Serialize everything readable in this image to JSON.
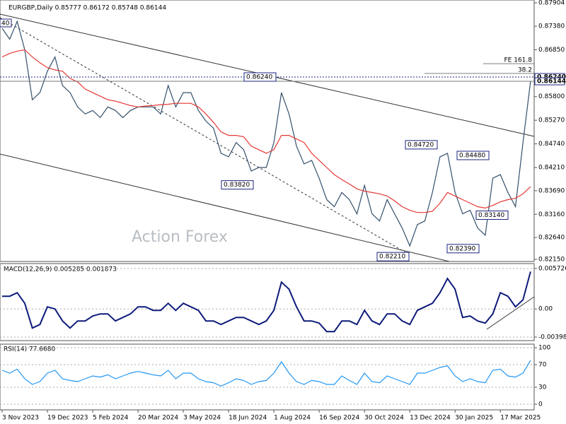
{
  "chart_data": [
    {
      "type": "line",
      "title": "EURGBP,Daily  0.85777 0.86172 0.85748 0.86144",
      "watermark": "Action Forex",
      "corner_label": "40",
      "categories": [
        "3 Nov 2023",
        null,
        null,
        null,
        null,
        null,
        "19 Dec 2023",
        null,
        null,
        null,
        null,
        null,
        "5 Feb 2024",
        null,
        null,
        null,
        null,
        null,
        "20 Mar 2024",
        null,
        null,
        null,
        null,
        null,
        "3 May 2024",
        null,
        null,
        null,
        null,
        null,
        "18 Jun 2024",
        null,
        null,
        null,
        null,
        null,
        "1 Aug 2024",
        null,
        null,
        null,
        null,
        null,
        "16 Sep 2024",
        null,
        null,
        null,
        null,
        null,
        "30 Oct 2024",
        null,
        null,
        null,
        null,
        null,
        "13 Dec 2024",
        null,
        null,
        null,
        null,
        null,
        "30 Jan 2025",
        null,
        null,
        null,
        null,
        null,
        "17 Mar 2025",
        null,
        null,
        null,
        null
      ],
      "series": [
        {
          "color": "#34506b",
          "values": [
            0.8733,
            0.8709,
            0.8749,
            0.8685,
            0.8573,
            0.8589,
            0.8637,
            0.8669,
            0.8605,
            0.8589,
            0.8557,
            0.8541,
            0.8549,
            0.8533,
            0.8557,
            0.8549,
            0.8533,
            0.8549,
            0.8557,
            0.8557,
            0.8557,
            0.8541,
            0.8605,
            0.8557,
            0.8589,
            0.8589,
            0.8549,
            0.8525,
            0.8509,
            0.8453,
            0.8445,
            0.8477,
            0.8461,
            0.8413,
            0.8421,
            0.8421,
            0.8477,
            0.8589,
            0.8541,
            0.8469,
            0.8429,
            0.8437,
            0.8397,
            0.8349,
            0.8333,
            0.8365,
            0.8349,
            0.8317,
            0.8381,
            0.8317,
            0.8301,
            0.8349,
            0.8317,
            0.8285,
            0.8245,
            0.8293,
            0.8301,
            0.8365,
            0.8445,
            0.8453,
            0.8365,
            0.8317,
            0.8325,
            0.8285,
            0.8269,
            0.8397,
            0.8405,
            0.8365,
            0.8333,
            0.8477,
            0.86144
          ]
        },
        {
          "color": "#e53935",
          "values": [
            0.8669,
            0.8677,
            0.8682,
            0.8685,
            0.8669,
            0.8656,
            0.8645,
            0.864,
            0.8637,
            0.8621,
            0.8613,
            0.8597,
            0.8589,
            0.8581,
            0.8573,
            0.857,
            0.8565,
            0.856,
            0.8557,
            0.8559,
            0.856,
            0.8562,
            0.8563,
            0.8565,
            0.8565,
            0.8565,
            0.8557,
            0.8541,
            0.8522,
            0.8501,
            0.8493,
            0.8493,
            0.849,
            0.8469,
            0.8461,
            0.8453,
            0.8461,
            0.8493,
            0.8493,
            0.8485,
            0.8477,
            0.8453,
            0.8437,
            0.8421,
            0.8405,
            0.8394,
            0.8384,
            0.8373,
            0.8368,
            0.8365,
            0.8362,
            0.8357,
            0.8346,
            0.8333,
            0.8325,
            0.832,
            0.832,
            0.8323,
            0.8341,
            0.8365,
            0.8357,
            0.8349,
            0.8341,
            0.8333,
            0.833,
            0.8336,
            0.8344,
            0.8349,
            0.8352,
            0.8362,
            0.8378
          ]
        }
      ],
      "ylim": [
        0.82102,
        0.87968
      ],
      "yticks": [
        0.87904,
        {
          "value": 0.8738,
          "label": "0.87380"
        },
        {
          "value": 0.8685,
          "label": "0.86850"
        },
        {
          "value": 0.858,
          "label": "0.85800"
        },
        {
          "value": 0.8527,
          "label": "0.85270"
        },
        {
          "value": 0.8474,
          "label": "0.84740"
        },
        {
          "value": 0.8421,
          "label": "0.84210"
        },
        {
          "value": 0.8369,
          "label": "0.83690"
        },
        {
          "value": 0.8316,
          "label": "0.83160"
        },
        {
          "value": 0.8264,
          "label": "0.82640"
        },
        {
          "value": 0.8215,
          "label": "0.82150"
        }
      ],
      "levels": [
        {
          "value": 0.8624,
          "label": "0.86240"
        },
        {
          "value": 0.86144,
          "label": "0.86144"
        }
      ],
      "fib_levels": [
        {
          "value": 0.8654,
          "label": "FE 161.8"
        },
        {
          "value": 0.8632,
          "label": "38.2"
        }
      ],
      "callouts": {
        "values": [
          0.8624,
          0.8382,
          0.8472,
          0.8448,
          0.8314,
          0.8239,
          0.8221
        ],
        "value_labels": [
          "0.86240",
          "0.83820",
          "0.84720",
          "0.84480",
          "0.83140",
          "0.82390",
          "0.82210"
        ]
      }
    },
    {
      "type": "line",
      "title": "MACD(12,26,9) 0.005285 0.001873",
      "series": [
        {
          "color": "#0d1b7a",
          "values": [
            0.0018,
            0.0018,
            0.0023,
            0.0008,
            -0.0027,
            -0.0022,
            0.0003,
            0,
            -0.0017,
            -0.0027,
            -0.0017,
            -0.0017,
            -0.001,
            -0.0007,
            -0.0007,
            -0.0017,
            -0.0012,
            -0.0007,
            0.0003,
            0.0003,
            -0.0002,
            -0.0002,
            0.0008,
            -0.0002,
            0.0008,
            0.0003,
            -0.0002,
            -0.0017,
            -0.0017,
            -0.0022,
            -0.0017,
            -0.0012,
            -0.0012,
            -0.0017,
            -0.0022,
            -0.0017,
            -0.0002,
            0.0038,
            0.0028,
            0.0003,
            -0.0017,
            -0.0017,
            -0.002,
            -0.0032,
            -0.0032,
            -0.0017,
            -0.0017,
            -0.0022,
            -0.0002,
            -0.0017,
            -0.0022,
            -0.0007,
            -0.0007,
            -0.0017,
            -0.0022,
            -0.0002,
            0.0003,
            0.0008,
            0.0023,
            0.0043,
            0.0028,
            -0.0012,
            -0.001,
            -0.0017,
            -0.002,
            -0.0007,
            0.0023,
            0.0018,
            0.0003,
            0.0013,
            0.005285
          ]
        }
      ],
      "ylim": [
        -0.00448,
        0.00642
      ],
      "yticks": [
        0.005726,
        {
          "value": 0,
          "label": "0.00"
        },
        -0.003982
      ]
    },
    {
      "type": "line",
      "title": "RSI(14) 77.6680",
      "series": [
        {
          "color": "#2196f3",
          "values": [
            60,
            55,
            62,
            45,
            35,
            40,
            55,
            60,
            45,
            42,
            40,
            45,
            50,
            48,
            52,
            45,
            50,
            55,
            58,
            55,
            52,
            50,
            60,
            45,
            55,
            55,
            45,
            40,
            38,
            32,
            38,
            45,
            42,
            35,
            40,
            42,
            55,
            75,
            55,
            40,
            35,
            42,
            40,
            35,
            35,
            50,
            42,
            35,
            55,
            40,
            38,
            50,
            45,
            40,
            35,
            55,
            55,
            60,
            65,
            68,
            50,
            40,
            45,
            40,
            38,
            60,
            62,
            50,
            48,
            55,
            77.668
          ]
        }
      ],
      "ylim": [
        -10,
        106.25
      ],
      "yticks": [
        100,
        70,
        30,
        0
      ]
    }
  ]
}
